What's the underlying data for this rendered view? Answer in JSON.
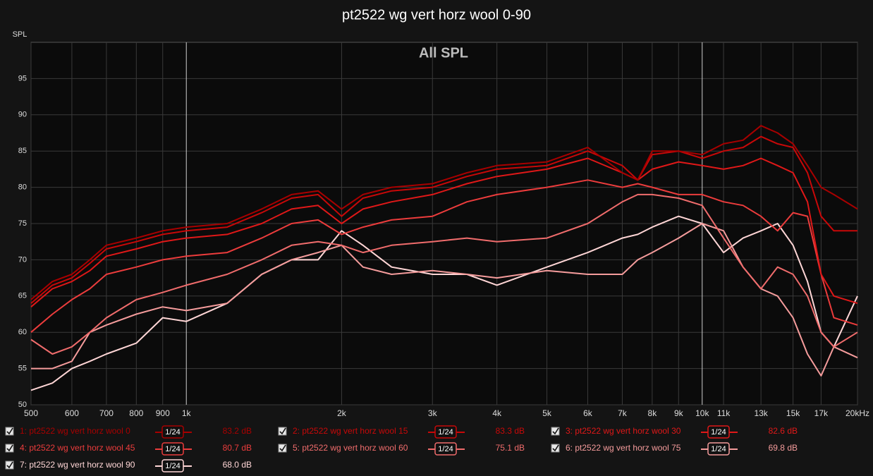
{
  "chart_data": {
    "type": "line",
    "title": "pt2522 wg vert horz wool 0-90",
    "y_label": "SPL",
    "annotation": "All SPL",
    "log_x": true,
    "grid": true,
    "xlim": [
      500,
      20000
    ],
    "ylim": [
      50,
      100
    ],
    "yticks": [
      50,
      55,
      60,
      65,
      70,
      75,
      80,
      85,
      90,
      95
    ],
    "xticks": [
      500,
      600,
      700,
      800,
      900,
      {
        "value": 1000,
        "label": "1k"
      },
      {
        "value": 2000,
        "label": "2k"
      },
      {
        "value": 3000,
        "label": "3k"
      },
      {
        "value": 4000,
        "label": "4k"
      },
      {
        "value": 5000,
        "label": "5k"
      },
      {
        "value": 6000,
        "label": "6k"
      },
      {
        "value": 7000,
        "label": "7k"
      },
      {
        "value": 8000,
        "label": "8k"
      },
      {
        "value": 9000,
        "label": "9k"
      },
      {
        "value": 10000,
        "label": "10k"
      },
      {
        "value": 11000,
        "label": "11k"
      },
      {
        "value": 13000,
        "label": "13k"
      },
      {
        "value": 15000,
        "label": "15k"
      },
      {
        "value": 17000,
        "label": "17k"
      },
      {
        "value": 20000,
        "label": "20kHz"
      }
    ],
    "x": [
      500,
      550,
      600,
      650,
      700,
      800,
      900,
      1000,
      1200,
      1400,
      1600,
      1800,
      2000,
      2200,
      2500,
      3000,
      3500,
      4000,
      5000,
      6000,
      7000,
      7500,
      8000,
      9000,
      10000,
      11000,
      12000,
      13000,
      14000,
      15000,
      16000,
      17000,
      18000,
      20000
    ],
    "series": [
      {
        "name": "1: pt2522 wg vert horz wool 0",
        "color": "#a80000",
        "smoothing": "1/24",
        "level": "83.2 dB",
        "values": [
          64.5,
          67,
          68,
          70,
          72,
          73,
          74,
          74.5,
          75,
          77,
          79,
          79.5,
          77,
          79,
          80,
          80.5,
          82,
          83,
          83.5,
          85.5,
          82,
          81,
          85,
          85,
          84.5,
          86,
          86.5,
          88.5,
          87.5,
          86,
          83,
          80,
          79,
          77
        ]
      },
      {
        "name": "2: pt2522 wg vert horz wool 15",
        "color": "#c80808",
        "smoothing": "1/24",
        "level": "83.3 dB",
        "values": [
          64,
          66.5,
          67.5,
          69.5,
          71.5,
          72.5,
          73.5,
          74,
          74.5,
          76.5,
          78.5,
          79,
          76,
          78.5,
          79.5,
          80,
          81.5,
          82.5,
          83,
          85,
          83,
          81,
          84.5,
          85,
          84,
          85,
          85.5,
          87,
          86,
          85.5,
          82,
          76,
          74,
          74
        ]
      },
      {
        "name": "3: pt2522 wg vert horz wool 30",
        "color": "#e01818",
        "smoothing": "1/24",
        "level": "82.6 dB",
        "values": [
          63.5,
          66,
          67,
          68.5,
          70.5,
          71.5,
          72.5,
          73,
          73.5,
          75,
          77,
          77.5,
          75,
          77,
          78,
          79,
          80.5,
          81.5,
          82.5,
          84,
          82,
          81,
          82.5,
          83.5,
          83,
          82.5,
          83,
          84,
          83,
          82,
          78,
          68,
          65,
          64
        ]
      },
      {
        "name": "4: pt2522 wg vert horz wool 45",
        "color": "#ec3c3c",
        "smoothing": "1/24",
        "level": "80.7 dB",
        "values": [
          60,
          62.5,
          64.5,
          66,
          68,
          69,
          70,
          70.5,
          71,
          73,
          75,
          75.5,
          73.5,
          74.5,
          75.5,
          76,
          78,
          79,
          80,
          81,
          80,
          80.5,
          80,
          79,
          79,
          78,
          77.5,
          76,
          74,
          76.5,
          76,
          68,
          62,
          61
        ]
      },
      {
        "name": "5: pt2522 wg vert horz wool 60",
        "color": "#f06c6c",
        "smoothing": "1/24",
        "level": "75.1 dB",
        "values": [
          59,
          57,
          58,
          60,
          62,
          64.5,
          65.5,
          66.5,
          68,
          70,
          72,
          72.5,
          72,
          71,
          72,
          72.5,
          73,
          72.5,
          73,
          75,
          78,
          79,
          79,
          78.5,
          77.5,
          73,
          69,
          66,
          69,
          68,
          65,
          60,
          58,
          60
        ]
      },
      {
        "name": "6: pt2522 wg vert horz wool 75",
        "color": "#f59c9c",
        "smoothing": "1/24",
        "level": "69.8 dB",
        "values": [
          55,
          55,
          56,
          60,
          61,
          62.5,
          63.5,
          63,
          64,
          68,
          70,
          71,
          72,
          69,
          68,
          68.5,
          68,
          67.5,
          68.5,
          68,
          68,
          70,
          71,
          73,
          75,
          74,
          69,
          66,
          65,
          62,
          57,
          54,
          58,
          56.5
        ]
      },
      {
        "name": "7: pt2522 wg vert horz wool 90",
        "color": "#ffd6d6",
        "smoothing": "1/24",
        "level": "68.0 dB",
        "values": [
          52,
          53,
          55,
          56,
          57,
          58.5,
          62,
          61.5,
          64,
          68,
          70,
          70,
          74,
          72,
          69,
          68,
          68,
          66.5,
          69,
          71,
          73,
          73.5,
          74.5,
          76,
          75,
          71,
          73,
          74,
          75,
          72,
          67,
          60,
          58,
          65
        ]
      }
    ]
  }
}
